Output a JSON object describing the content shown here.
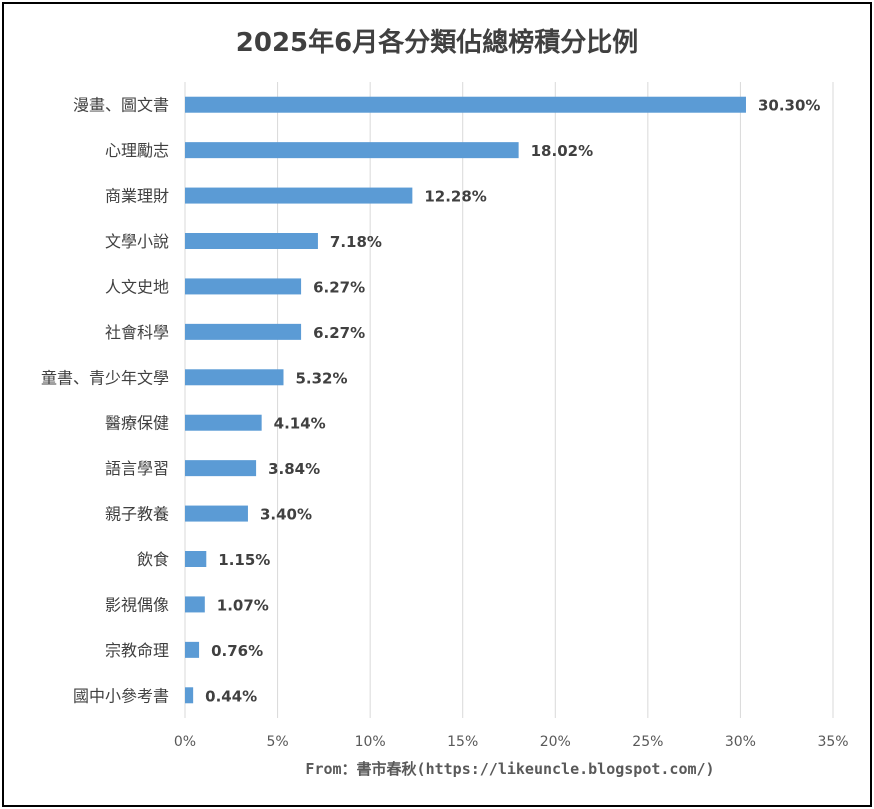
{
  "chart_data": {
    "type": "bar",
    "orientation": "horizontal",
    "title": "2025年6月各分類佔總榜積分比例",
    "source": "From：書市春秋(https://likeuncle.blogspot.com/)",
    "categories": [
      "漫畫、圖文書",
      "心理勵志",
      "商業理財",
      "文學小說",
      "人文史地",
      "社會科學",
      "童書、青少年文學",
      "醫療保健",
      "語言學習",
      "親子教養",
      "飲食",
      "影視偶像",
      "宗教命理",
      "國中小參考書"
    ],
    "values": [
      30.3,
      18.02,
      12.28,
      7.18,
      6.27,
      6.27,
      5.32,
      4.14,
      3.84,
      3.4,
      1.15,
      1.07,
      0.76,
      0.44
    ],
    "value_labels": [
      "30.30%",
      "18.02%",
      "12.28%",
      "7.18%",
      "6.27%",
      "6.27%",
      "5.32%",
      "4.14%",
      "3.84%",
      "3.40%",
      "1.15%",
      "1.07%",
      "0.76%",
      "0.44%"
    ],
    "xlim": [
      0,
      35
    ],
    "xticks": [
      0,
      5,
      10,
      15,
      20,
      25,
      30,
      35
    ],
    "xtick_labels": [
      "0%",
      "5%",
      "10%",
      "15%",
      "20%",
      "25%",
      "30%",
      "35%"
    ],
    "grid": true,
    "bar_color": "#5B9BD5",
    "grid_color": "#D9D9D9"
  }
}
